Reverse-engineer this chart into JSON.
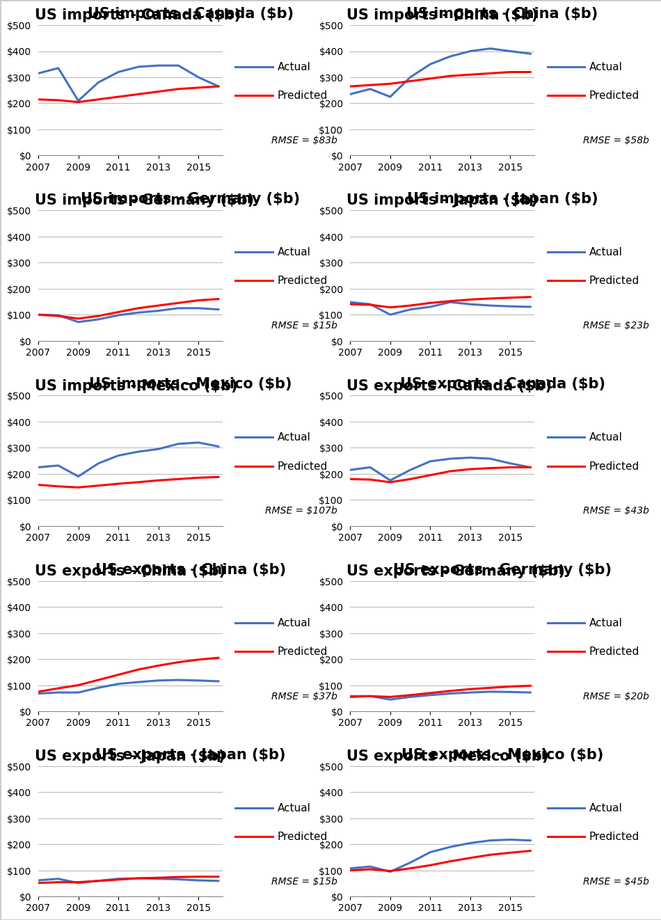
{
  "charts": [
    {
      "title": "US imports - Canada ($b)",
      "rmse": "RMSE = $83b",
      "years": [
        2007,
        2008,
        2009,
        2010,
        2011,
        2012,
        2013,
        2014,
        2015,
        2016
      ],
      "actual": [
        315,
        335,
        210,
        280,
        320,
        340,
        345,
        345,
        300,
        265
      ],
      "predicted": [
        215,
        212,
        205,
        215,
        225,
        235,
        245,
        255,
        260,
        265
      ]
    },
    {
      "title": "US imports - China ($b)",
      "rmse": "RMSE = $58b",
      "years": [
        2007,
        2008,
        2009,
        2010,
        2011,
        2012,
        2013,
        2014,
        2015,
        2016
      ],
      "actual": [
        235,
        255,
        225,
        300,
        350,
        380,
        400,
        410,
        400,
        390
      ],
      "predicted": [
        265,
        270,
        275,
        285,
        295,
        305,
        310,
        315,
        320,
        320
      ]
    },
    {
      "title": "US imports - Germany ($b)",
      "rmse": "RMSE = $15b",
      "years": [
        2007,
        2008,
        2009,
        2010,
        2011,
        2012,
        2013,
        2014,
        2015,
        2016
      ],
      "actual": [
        100,
        98,
        72,
        82,
        98,
        108,
        115,
        125,
        125,
        120
      ],
      "predicted": [
        100,
        95,
        85,
        95,
        110,
        125,
        135,
        145,
        155,
        160
      ]
    },
    {
      "title": "US imports - Japan ($b)",
      "rmse": "RMSE = $23b",
      "years": [
        2007,
        2008,
        2009,
        2010,
        2011,
        2012,
        2013,
        2014,
        2015,
        2016
      ],
      "actual": [
        148,
        140,
        100,
        120,
        130,
        148,
        140,
        135,
        132,
        130
      ],
      "predicted": [
        140,
        138,
        128,
        135,
        145,
        152,
        158,
        162,
        165,
        168
      ]
    },
    {
      "title": "US imports - Mexico ($b)",
      "rmse": "RMSE = $107b",
      "years": [
        2007,
        2008,
        2009,
        2010,
        2011,
        2012,
        2013,
        2014,
        2015,
        2016
      ],
      "actual": [
        225,
        232,
        190,
        240,
        270,
        285,
        295,
        315,
        320,
        305
      ],
      "predicted": [
        158,
        152,
        148,
        155,
        162,
        168,
        175,
        180,
        185,
        188
      ]
    },
    {
      "title": "US exports - Canada ($b)",
      "rmse": "RMSE = $43b",
      "years": [
        2007,
        2008,
        2009,
        2010,
        2011,
        2012,
        2013,
        2014,
        2015,
        2016
      ],
      "actual": [
        215,
        225,
        175,
        215,
        248,
        258,
        262,
        258,
        240,
        225
      ],
      "predicted": [
        180,
        178,
        168,
        180,
        195,
        210,
        218,
        222,
        225,
        225
      ]
    },
    {
      "title": "US exports - China ($b)",
      "rmse": "RMSE = $37b",
      "years": [
        2007,
        2008,
        2009,
        2010,
        2011,
        2012,
        2013,
        2014,
        2015,
        2016
      ],
      "actual": [
        68,
        72,
        72,
        90,
        105,
        112,
        118,
        120,
        118,
        115
      ],
      "predicted": [
        75,
        88,
        100,
        120,
        140,
        160,
        175,
        188,
        198,
        205
      ]
    },
    {
      "title": "US exports - Germany ($b)",
      "rmse": "RMSE = $20b",
      "years": [
        2007,
        2008,
        2009,
        2010,
        2011,
        2012,
        2013,
        2014,
        2015,
        2016
      ],
      "actual": [
        58,
        58,
        45,
        55,
        62,
        68,
        72,
        75,
        74,
        72
      ],
      "predicted": [
        55,
        58,
        55,
        62,
        70,
        78,
        85,
        90,
        95,
        98
      ]
    },
    {
      "title": "US exports - Japan ($b)",
      "rmse": "RMSE = $15b",
      "years": [
        2007,
        2008,
        2009,
        2010,
        2011,
        2012,
        2013,
        2014,
        2015,
        2016
      ],
      "actual": [
        62,
        68,
        52,
        60,
        68,
        70,
        68,
        66,
        62,
        60
      ],
      "predicted": [
        52,
        55,
        55,
        60,
        65,
        70,
        72,
        75,
        76,
        76
      ]
    },
    {
      "title": "US exports - Mexico ($b)",
      "rmse": "RMSE = $45b",
      "years": [
        2007,
        2008,
        2009,
        2010,
        2011,
        2012,
        2013,
        2014,
        2015,
        2016
      ],
      "actual": [
        108,
        115,
        95,
        130,
        170,
        190,
        205,
        215,
        218,
        215
      ],
      "predicted": [
        100,
        105,
        98,
        108,
        120,
        135,
        148,
        160,
        168,
        175
      ]
    }
  ],
  "actual_color": "#4472C4",
  "predicted_color": "#FF0000",
  "line_width": 2.2,
  "title_fontsize": 15,
  "tick_fontsize": 10,
  "legend_fontsize": 11,
  "rmse_fontsize": 10,
  "ylim": [
    0,
    500
  ],
  "yticks": [
    0,
    100,
    200,
    300,
    400,
    500
  ],
  "ytick_labels": [
    "$0",
    "$100",
    "$200",
    "$300",
    "$400",
    "$500"
  ],
  "background_color": "#ffffff",
  "grid_color": "#bbbbbb",
  "border_color": "#cccccc"
}
